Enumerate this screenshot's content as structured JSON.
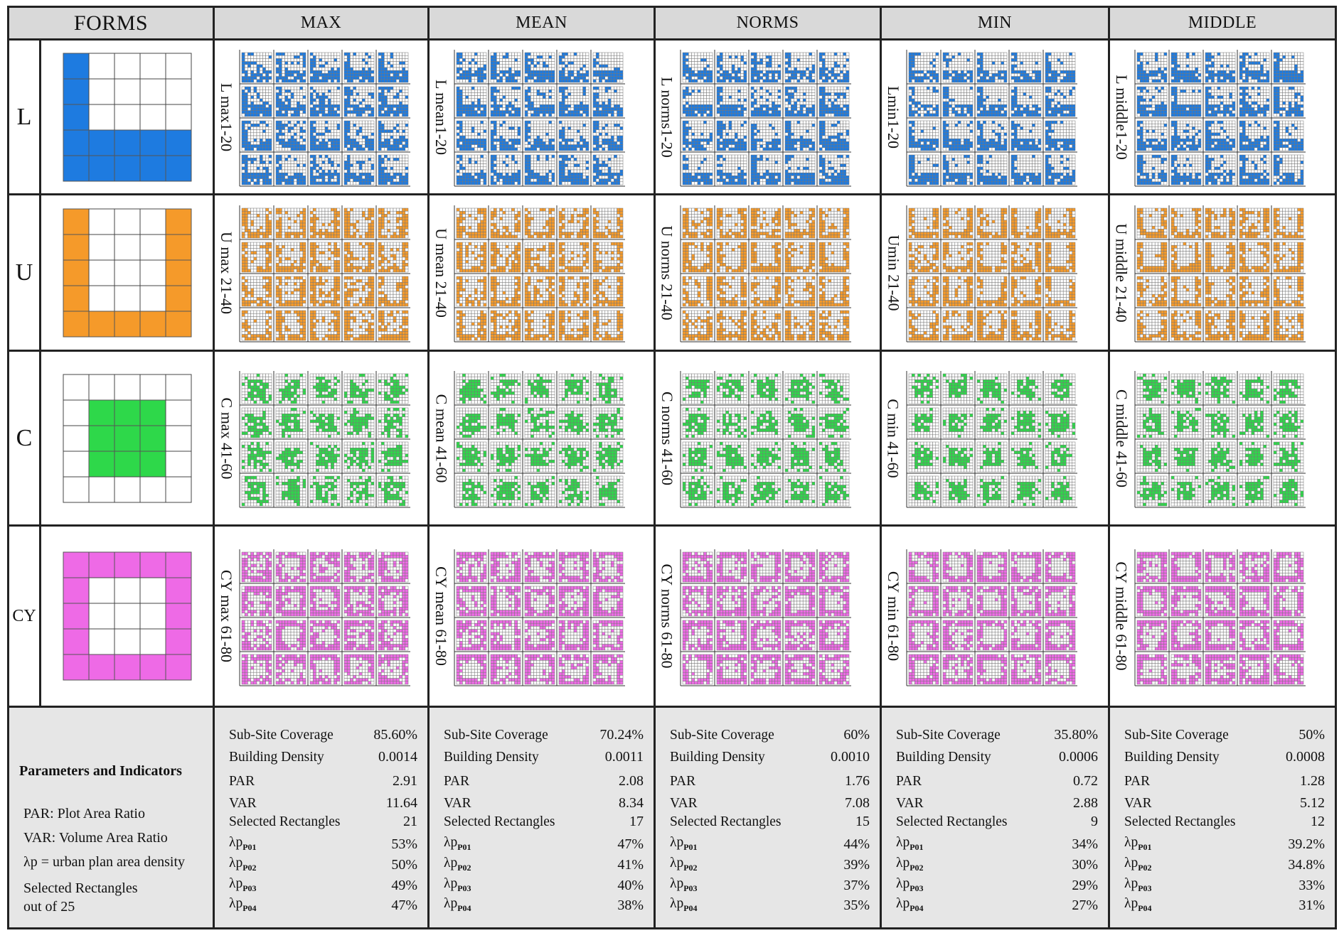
{
  "header": {
    "forms": "FORMS",
    "columns": [
      "MAX",
      "MEAN",
      "NORMS",
      "MIN",
      "MIDDLE"
    ]
  },
  "colors": {
    "L": "#1e7be0",
    "U": "#f59a2a",
    "C": "#2ed84a",
    "CY": "#ee6ae6",
    "header_bg": "#d9d9d9",
    "params_bg": "#e6e6e6"
  },
  "rows": [
    {
      "label": "L",
      "cells": [
        "L max1-20",
        "L mean1-20",
        "L norms1-20",
        "Lmin1-20",
        "L middle1-20"
      ]
    },
    {
      "label": "U",
      "cells": [
        "U max  21-40",
        "U mean  21-40",
        "U norms 21-40",
        "Umin  21-40",
        "U middle  21-40"
      ]
    },
    {
      "label": "C",
      "cells": [
        "C max 41-60",
        "C mean 41-60",
        "C norms  41-60",
        "C min 41-60",
        "C middle 41-60"
      ]
    },
    {
      "label": "CY",
      "cells": [
        "CY max 61-80",
        "CY mean 61-80",
        "CY norms  61-80",
        "CY min  61-80",
        "CY middle 61-80"
      ]
    }
  ],
  "legend": {
    "title": "Parameters and Indicators",
    "lines": [
      "PAR: Plot Area Ratio",
      "VAR: Volume Area Ratio",
      "λp = urban plan area density",
      "Selected Rectangles",
      "out of 25"
    ]
  },
  "param_labels": [
    "Sub-Site Coverage",
    "Building Density",
    "PAR",
    "VAR",
    "Selected Rectangles",
    "λp",
    "λp",
    "λp",
    "λp"
  ],
  "param_subs": [
    "P01",
    "P02",
    "P03",
    "P04"
  ],
  "params": [
    {
      "values": [
        "85.60%",
        "0.0014",
        "2.91",
        "11.64",
        "21",
        "53%",
        "50%",
        "49%",
        "47%"
      ]
    },
    {
      "values": [
        "70.24%",
        "0.0011",
        "2.08",
        "8.34",
        "17",
        "47%",
        "41%",
        "40%",
        "38%"
      ]
    },
    {
      "values": [
        "60%",
        "0.0010",
        "1.76",
        "7.08",
        "15",
        "44%",
        "39%",
        "37%",
        "35%"
      ]
    },
    {
      "values": [
        "35.80%",
        "0.0006",
        "0.72",
        "2.88",
        "9",
        "34%",
        "30%",
        "29%",
        "27%"
      ]
    },
    {
      "values": [
        "50%",
        "0.0008",
        "1.28",
        "5.12",
        "12",
        "39.2%",
        "34.8%",
        "33%",
        "31%"
      ]
    }
  ]
}
